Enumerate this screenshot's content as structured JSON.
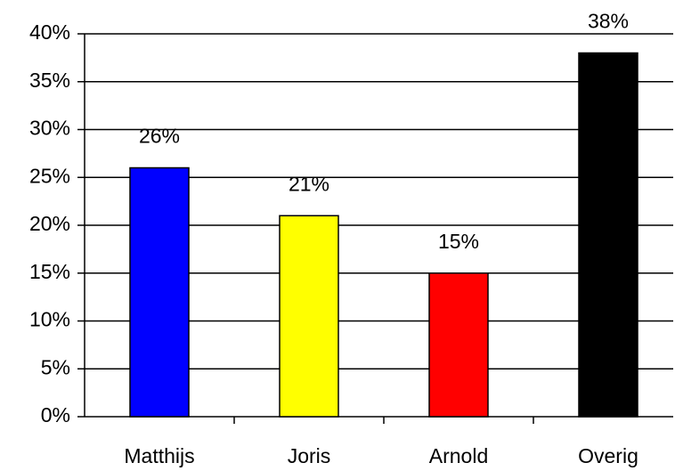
{
  "chart_data": {
    "type": "bar",
    "categories": [
      "Matthijs",
      "Joris",
      "Arnold",
      "Overig"
    ],
    "values": [
      26,
      21,
      15,
      38
    ],
    "value_labels": [
      "26%",
      "21%",
      "15%",
      "38%"
    ],
    "colors": [
      "#0000ff",
      "#ffff00",
      "#ff0000",
      "#000000"
    ],
    "ylim": [
      0,
      40
    ],
    "yticks": [
      {
        "value": 0,
        "label": "0%"
      },
      {
        "value": 5,
        "label": "5%"
      },
      {
        "value": 10,
        "label": "10%"
      },
      {
        "value": 15,
        "label": "15%"
      },
      {
        "value": 20,
        "label": "20%"
      },
      {
        "value": 25,
        "label": "25%"
      },
      {
        "value": 30,
        "label": "30%"
      },
      {
        "value": 35,
        "label": "35%"
      },
      {
        "value": 40,
        "label": "40%"
      }
    ],
    "grid": true
  }
}
